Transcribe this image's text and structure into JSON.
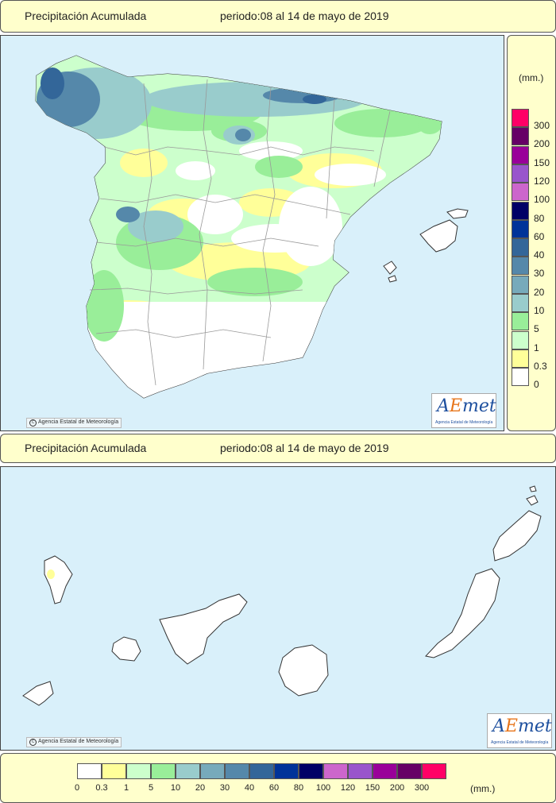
{
  "top_header": {
    "title": "Precipitación Acumulada",
    "period": "periodo:08 al 14 de mayo de 2019"
  },
  "mid_header": {
    "title": "Precipitación Acumulada",
    "period": "periodo:08 al 14 de mayo de 2019"
  },
  "credit": "Agencia Estatal de Meteorología",
  "copyright_symbol": "C",
  "logo": {
    "a": "A",
    "e": "E",
    "rest": "met",
    "subtitle": "Agencia Estatal de Meteorología"
  },
  "side_legend": {
    "unit": "(mm.)"
  },
  "bottom_legend": {
    "unit": "(mm.)"
  },
  "colors": {
    "sea": "#d9f0fa",
    "header_bg": "#ffffcc"
  },
  "scale": [
    {
      "label": "0",
      "color": "#ffffff"
    },
    {
      "label": "0.3",
      "color": "#ffff99"
    },
    {
      "label": "1",
      "color": "#ccffcc"
    },
    {
      "label": "5",
      "color": "#99ee99"
    },
    {
      "label": "10",
      "color": "#99cccc"
    },
    {
      "label": "20",
      "color": "#77aabb"
    },
    {
      "label": "30",
      "color": "#5588aa"
    },
    {
      "label": "40",
      "color": "#336699"
    },
    {
      "label": "60",
      "color": "#003399"
    },
    {
      "label": "80",
      "color": "#000066"
    },
    {
      "label": "100",
      "color": "#cc66cc"
    },
    {
      "label": "120",
      "color": "#9955cc"
    },
    {
      "label": "150",
      "color": "#990099"
    },
    {
      "label": "200",
      "color": "#660066"
    },
    {
      "label": "300",
      "color": "#ff0066"
    }
  ]
}
